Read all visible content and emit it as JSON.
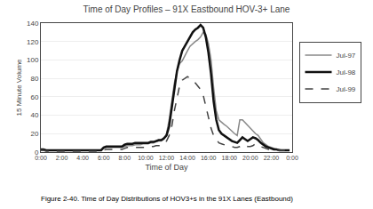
{
  "chart_data": {
    "type": "line",
    "title": "Time of Day Profiles – 91X Eastbound HOV-3+ Lane",
    "xlabel": "Time of Day",
    "ylabel": "15 Minute Volume",
    "caption": "Figure 2-40. Time of Day Distributions of HOV3+s in the 91X Lanes (Eastbound)",
    "x": [
      0,
      1,
      2,
      3,
      4,
      5,
      6,
      7,
      8,
      9,
      10,
      11,
      12,
      13,
      14,
      15,
      16,
      17,
      18,
      19,
      20,
      21,
      22,
      23,
      24,
      25,
      26,
      27,
      28,
      29,
      30,
      31,
      32,
      33,
      34,
      35,
      36,
      37,
      38,
      39,
      40,
      41,
      42,
      43,
      44,
      45,
      46,
      47,
      48,
      49,
      50,
      51,
      52,
      53,
      54,
      55,
      56,
      57,
      58,
      59,
      60,
      61,
      62,
      63,
      64,
      65,
      66,
      67,
      68,
      69,
      70,
      71,
      72,
      73,
      74,
      75,
      76,
      77,
      78,
      79,
      80,
      81,
      82,
      83,
      84,
      85,
      86,
      87,
      88,
      89,
      90,
      91,
      92,
      93,
      94,
      95
    ],
    "xlim": [
      0,
      96
    ],
    "xticks": [
      {
        "value": 0,
        "label": "0:00"
      },
      {
        "value": 8,
        "label": "2:00"
      },
      {
        "value": 16,
        "label": "4:00"
      },
      {
        "value": 24,
        "label": "6:00"
      },
      {
        "value": 32,
        "label": "8:00"
      },
      {
        "value": 40,
        "label": "10:00"
      },
      {
        "value": 48,
        "label": "12:00"
      },
      {
        "value": 56,
        "label": "14:00"
      },
      {
        "value": 64,
        "label": "16:00"
      },
      {
        "value": 72,
        "label": "18:00"
      },
      {
        "value": 80,
        "label": "20:00"
      },
      {
        "value": 88,
        "label": "22:00"
      },
      {
        "value": 96,
        "label": "0:00"
      }
    ],
    "ylim": [
      0,
      140
    ],
    "yticks": [
      0,
      20,
      40,
      60,
      80,
      100,
      120,
      140
    ],
    "grid": "y",
    "legend": "right",
    "series": [
      {
        "name": "Jul-97",
        "color": "#888888",
        "line_style": "solid",
        "values": [
          2,
          2,
          2,
          2,
          2,
          2,
          2,
          2,
          2,
          2,
          2,
          2,
          2,
          2,
          2,
          2,
          2,
          2,
          2,
          2,
          2,
          2,
          2,
          2,
          4,
          5,
          5,
          5,
          5,
          5,
          5,
          5,
          6,
          7,
          7,
          7,
          8,
          8,
          8,
          9,
          9,
          9,
          10,
          10,
          11,
          12,
          12,
          14,
          20,
          35,
          55,
          75,
          88,
          96,
          99,
          105,
          110,
          115,
          118,
          120,
          122,
          125,
          130,
          128,
          118,
          100,
          70,
          45,
          35,
          32,
          30,
          28,
          25,
          22,
          20,
          18,
          35,
          35,
          32,
          28,
          25,
          22,
          20,
          18,
          14,
          10,
          8,
          6,
          5,
          4,
          3,
          3,
          2,
          2,
          2,
          2
        ]
      },
      {
        "name": "Jul-98",
        "color": "#111111",
        "line_style": "solid",
        "values": [
          3,
          3,
          2,
          2,
          2,
          2,
          2,
          2,
          2,
          2,
          2,
          2,
          2,
          2,
          2,
          2,
          2,
          2,
          2,
          2,
          2,
          2,
          2,
          2,
          5,
          6,
          6,
          6,
          6,
          6,
          6,
          6,
          8,
          9,
          9,
          9,
          10,
          10,
          10,
          10,
          10,
          10,
          11,
          11,
          12,
          13,
          13,
          15,
          18,
          28,
          48,
          70,
          88,
          100,
          110,
          115,
          120,
          125,
          130,
          133,
          135,
          138,
          135,
          125,
          108,
          85,
          55,
          35,
          24,
          20,
          18,
          16,
          14,
          12,
          11,
          10,
          13,
          16,
          14,
          12,
          14,
          16,
          15,
          13,
          10,
          8,
          6,
          5,
          4,
          3,
          3,
          2,
          2,
          2,
          2,
          2
        ]
      },
      {
        "name": "Jul-99",
        "color": "#444444",
        "line_style": "dashed",
        "values": [
          2,
          2,
          1,
          1,
          1,
          1,
          1,
          1,
          1,
          1,
          1,
          1,
          1,
          1,
          1,
          1,
          1,
          1,
          1,
          1,
          1,
          1,
          1,
          1,
          2,
          3,
          3,
          3,
          3,
          3,
          3,
          3,
          4,
          5,
          5,
          5,
          5,
          5,
          5,
          5,
          5,
          5,
          6,
          6,
          7,
          7,
          7,
          8,
          12,
          18,
          28,
          45,
          60,
          72,
          78,
          80,
          82,
          80,
          78,
          75,
          72,
          68,
          62,
          50,
          38,
          26,
          18,
          14,
          10,
          9,
          8,
          7,
          6,
          6,
          5,
          5,
          6,
          8,
          7,
          6,
          6,
          7,
          9,
          8,
          6,
          5,
          4,
          3,
          3,
          2,
          2,
          2,
          2,
          2,
          1,
          1
        ]
      }
    ]
  }
}
